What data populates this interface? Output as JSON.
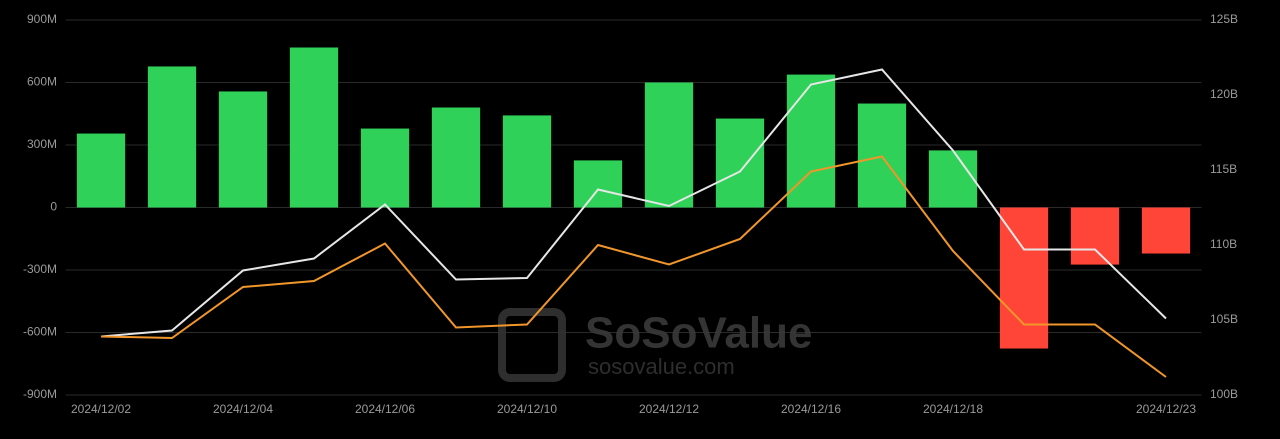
{
  "chart_data": {
    "type": "bar-line",
    "categories": [
      "2024/12/02",
      null,
      "2024/12/04",
      null,
      "2024/12/06",
      null,
      "2024/12/10",
      null,
      "2024/12/12",
      null,
      "2024/12/16",
      null,
      "2024/12/18",
      null,
      null,
      "2024/12/23"
    ],
    "values": [
      355,
      677,
      557,
      768,
      379,
      480,
      442,
      226,
      600,
      427,
      638,
      499,
      274,
      -677,
      -274,
      -221
    ],
    "positive_color": "#2fd158",
    "negative_color": "#ff4438",
    "ylim": [
      -900,
      900
    ],
    "yticks": [
      {
        "value": -900,
        "label": "-900M"
      },
      {
        "value": -600,
        "label": "-600M"
      },
      {
        "value": -300,
        "label": "-300M"
      },
      0,
      {
        "value": 300,
        "label": "300M"
      },
      {
        "value": 600,
        "label": "600M"
      },
      {
        "value": 900,
        "label": "900M"
      }
    ],
    "y2lim": [
      100,
      125
    ],
    "y2ticks": [
      {
        "value": 100,
        "label": "100B"
      },
      {
        "value": 105,
        "label": "105B"
      },
      {
        "value": 110,
        "label": "110B"
      },
      {
        "value": 115,
        "label": "115B"
      },
      {
        "value": 120,
        "label": "120B"
      },
      {
        "value": 125,
        "label": "125B"
      }
    ],
    "series": [
      {
        "color": "#e6e6e6",
        "axis": "y2",
        "values": [
          103.9,
          104.3,
          108.3,
          109.1,
          112.7,
          107.7,
          107.8,
          113.7,
          112.6,
          114.9,
          120.7,
          121.7,
          116.3,
          109.7,
          109.7,
          105.1
        ]
      },
      {
        "color": "#f0962a",
        "axis": "y2",
        "values": [
          103.9,
          103.8,
          107.2,
          107.6,
          110.1,
          104.5,
          104.7,
          110.0,
          108.7,
          110.4,
          114.9,
          115.9,
          109.6,
          104.7,
          104.7,
          101.2
        ]
      }
    ],
    "grid": true,
    "watermark": {
      "brand": "SoSoValue",
      "url": "sosovalue.com"
    }
  }
}
